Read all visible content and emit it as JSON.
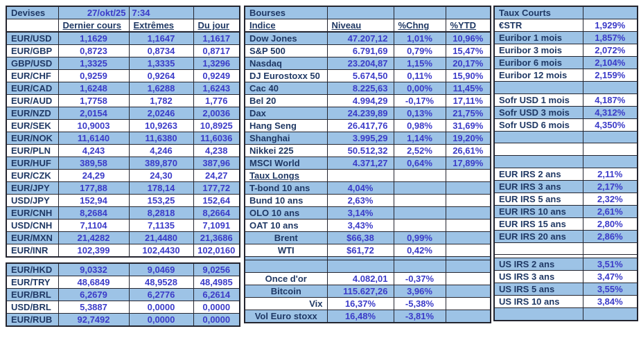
{
  "palette": {
    "row_shaded": "#9DC3E6",
    "row_white": "#FFFFFF",
    "label_color": "#1F3864",
    "value_color": "#3B3BC8",
    "grid_border": "#23242E"
  },
  "devises": {
    "title": "Devises",
    "date": "27/okt/25",
    "time": "7:34",
    "headers": [
      "Dernier cours",
      "Extrêmes",
      "Du jour"
    ],
    "rows": [
      {
        "pair": "EUR/USD",
        "last": "1,1629",
        "extremes": "1,1647",
        "jour": "1,1617"
      },
      {
        "pair": "EUR/GBP",
        "last": "0,8723",
        "extremes": "0,8734",
        "jour": "0,8717"
      },
      {
        "pair": "GBP/USD",
        "last": "1,3325",
        "extremes": "1,3335",
        "jour": "1,3296"
      },
      {
        "pair": "EUR/CHF",
        "last": "0,9259",
        "extremes": "0,9264",
        "jour": "0,9249"
      },
      {
        "pair": "EUR/CAD",
        "last": "1,6248",
        "extremes": "1,6288",
        "jour": "1,6243"
      },
      {
        "pair": "EUR/AUD",
        "last": "1,7758",
        "extremes": "1,782",
        "jour": "1,776"
      },
      {
        "pair": "EUR/NZD",
        "last": "2,0154",
        "extremes": "2,0246",
        "jour": "2,0036"
      },
      {
        "pair": "EUR/SEK",
        "last": "10,9003",
        "extremes": "10,9263",
        "jour": "10,8925"
      },
      {
        "pair": "EUR/NOK",
        "last": "11,6140",
        "extremes": "11,6380",
        "jour": "11,6036"
      },
      {
        "pair": "EUR/PLN",
        "last": "4,243",
        "extremes": "4,246",
        "jour": "4,238"
      },
      {
        "pair": "EUR/HUF",
        "last": "389,58",
        "extremes": "389,870",
        "jour": "387,96"
      },
      {
        "pair": "EUR/CZK",
        "last": "24,29",
        "extremes": "24,30",
        "jour": "24,27"
      },
      {
        "pair": "EUR/JPY",
        "last": "177,88",
        "extremes": "178,14",
        "jour": "177,72"
      },
      {
        "pair": "USD/JPY",
        "last": "152,94",
        "extremes": "153,25",
        "jour": "152,64"
      },
      {
        "pair": "EUR/CNH",
        "last": "8,2684",
        "extremes": "8,2818",
        "jour": "8,2664"
      },
      {
        "pair": "USD/CNH",
        "last": "7,1104",
        "extremes": "7,1135",
        "jour": "7,1091"
      },
      {
        "pair": "EUR/MXN",
        "last": "21,4282",
        "extremes": "21,4480",
        "jour": "21,3686"
      },
      {
        "pair": "EUR/INR",
        "last": "102,399",
        "extremes": "102,4430",
        "jour": "102,0160"
      }
    ],
    "rows_lower": [
      {
        "pair": "EUR/HKD",
        "last": "9,0332",
        "extremes": "9,0469",
        "jour": "9,0256"
      },
      {
        "pair": "EUR/TRY",
        "last": "48,6849",
        "extremes": "48,9528",
        "jour": "48,4985"
      },
      {
        "pair": "EUR/BRL",
        "last": "6,2679",
        "extremes": "6,2776",
        "jour": "6,2614"
      },
      {
        "pair": "USD/BRL",
        "last": "5,3887",
        "extremes": "0,0000",
        "jour": "0,0000"
      },
      {
        "pair": "EUR/RUB",
        "last": "92,7492",
        "extremes": "0,0000",
        "jour": "0,0000"
      }
    ]
  },
  "bourses": {
    "title": "Bourses",
    "headers": [
      "Indice",
      "Niveau",
      "%Chng",
      "%YTD"
    ],
    "indices": [
      {
        "name": "Dow Jones",
        "niveau": "47.207,12",
        "chng": "1,01%",
        "ytd": "10,96%"
      },
      {
        "name": "S&P 500",
        "niveau": "6.791,69",
        "chng": "0,79%",
        "ytd": "15,47%"
      },
      {
        "name": "Nasdaq",
        "niveau": "23.204,87",
        "chng": "1,15%",
        "ytd": "20,17%"
      },
      {
        "name": "DJ Eurostoxx 50",
        "niveau": "5.674,50",
        "chng": "0,11%",
        "ytd": "15,90%"
      },
      {
        "name": "Cac 40",
        "niveau": "8.225,63",
        "chng": "0,00%",
        "ytd": "11,45%"
      },
      {
        "name": "Bel 20",
        "niveau": "4.994,29",
        "chng": "-0,17%",
        "ytd": "17,11%"
      },
      {
        "name": "Dax",
        "niveau": "24.239,89",
        "chng": "0,13%",
        "ytd": "21,75%"
      },
      {
        "name": "Hang Seng",
        "niveau": "26.417,76",
        "chng": "0,98%",
        "ytd": "31,69%"
      },
      {
        "name": "Shanghai",
        "niveau": "3.995,29",
        "chng": "1,14%",
        "ytd": "19,20%"
      },
      {
        "name": "Nikkei 225",
        "niveau": "50.512,32",
        "chng": "2,52%",
        "ytd": "26,61%"
      },
      {
        "name": "MSCI World",
        "niveau": "4.371,27",
        "chng": "0,64%",
        "ytd": "17,89%"
      }
    ],
    "taux_longs": {
      "title": "Taux Longs",
      "rows": [
        {
          "name": "T-bond 10 ans",
          "taux": "4,04%"
        },
        {
          "name": "Bund 10 ans",
          "taux": "2,63%"
        },
        {
          "name": "OLO 10 ans",
          "taux": "3,14%"
        },
        {
          "name": "OAT 10 ans",
          "taux": "3,43%"
        }
      ]
    },
    "energie": [
      {
        "name": "Brent",
        "niveau": "$66,38",
        "chng": "0,99%"
      },
      {
        "name": "WTI",
        "niveau": "$61,72",
        "chng": "0,42%"
      }
    ],
    "autres": [
      {
        "name": "Once d'or",
        "niveau": "4.082,01",
        "chng": "-0,37%"
      },
      {
        "name": "Bitcoin",
        "niveau": "115.627,26",
        "chng": "3,96%"
      },
      {
        "name": "Vix",
        "niveau": "16,37%",
        "chng": "-5,38%"
      },
      {
        "name": "Vol Euro stoxx",
        "niveau": "16,48%",
        "chng": "-3,81%"
      }
    ]
  },
  "taux_courts": {
    "title": "Taux Courts",
    "rows": [
      {
        "name": "€STR",
        "taux": "1,929%"
      },
      {
        "name": "Euribor 1 mois",
        "taux": "1,857%"
      },
      {
        "name": "Euribor 3 mois",
        "taux": "2,072%"
      },
      {
        "name": "Euribor 6 mois",
        "taux": "2,104%"
      },
      {
        "name": "Euribor 12 mois",
        "taux": "2,159%"
      },
      {
        "name": "Sofr USD 1 mois",
        "taux": "4,187%"
      },
      {
        "name": "Sofr USD 3 mois",
        "taux": "4,312%"
      },
      {
        "name": "Sofr USD 6 mois",
        "taux": "4,350%"
      },
      {
        "name": "EUR IRS 2 ans",
        "taux": "2,11%"
      },
      {
        "name": "EUR IRS 3 ans",
        "taux": "2,17%"
      },
      {
        "name": "EUR IRS 5 ans",
        "taux": "2,32%"
      },
      {
        "name": "EUR IRS 10 ans",
        "taux": "2,61%"
      },
      {
        "name": "EUR IRS 15 ans",
        "taux": "2,80%"
      },
      {
        "name": "EUR IRS 20 ans",
        "taux": "2,86%"
      },
      {
        "name": "US IRS 2 ans",
        "taux": "3,51%"
      },
      {
        "name": "US IRS 3 ans",
        "taux": "3,47%"
      },
      {
        "name": "US IRS 5 ans",
        "taux": "3,55%"
      },
      {
        "name": "US IRS 10 ans",
        "taux": "3,84%"
      }
    ]
  }
}
